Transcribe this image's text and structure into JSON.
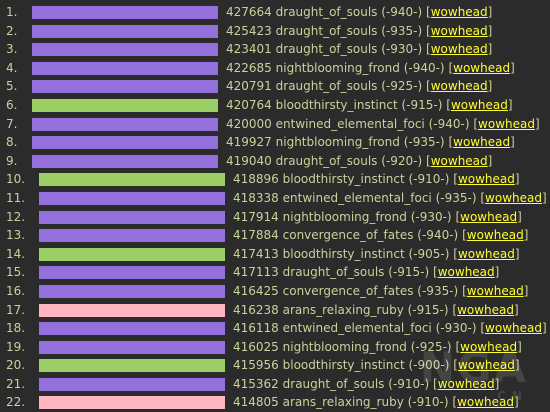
{
  "colors": {
    "purple": "#9370db",
    "green": "#9acd63",
    "pink": "#ffb6c1",
    "link": "#ffff33",
    "text": "#c8d39a",
    "background": "#2b2b2b"
  },
  "rows": [
    {
      "rank": "1.",
      "score": "427664",
      "name": "draught_of_souls",
      "ilvl": "(-940-)",
      "link": "wowhead",
      "color": "purple"
    },
    {
      "rank": "2.",
      "score": "425423",
      "name": "draught_of_souls",
      "ilvl": "(-935-)",
      "link": "wowhead",
      "color": "purple"
    },
    {
      "rank": "3.",
      "score": "423401",
      "name": "draught_of_souls",
      "ilvl": "(-930-)",
      "link": "wowhead",
      "color": "purple"
    },
    {
      "rank": "4.",
      "score": "422685",
      "name": "nightblooming_frond",
      "ilvl": "(-940-)",
      "link": "wowhead",
      "color": "purple"
    },
    {
      "rank": "5.",
      "score": "420791",
      "name": "draught_of_souls",
      "ilvl": "(-925-)",
      "link": "wowhead",
      "color": "purple"
    },
    {
      "rank": "6.",
      "score": "420764",
      "name": "bloodthirsty_instinct",
      "ilvl": "(-915-)",
      "link": "wowhead",
      "color": "green"
    },
    {
      "rank": "7.",
      "score": "420000",
      "name": "entwined_elemental_foci",
      "ilvl": "(-940-)",
      "link": "wowhead",
      "color": "purple"
    },
    {
      "rank": "8.",
      "score": "419927",
      "name": "nightblooming_frond",
      "ilvl": "(-935-)",
      "link": "wowhead",
      "color": "purple"
    },
    {
      "rank": "9.",
      "score": "419040",
      "name": "draught_of_souls",
      "ilvl": "(-920-)",
      "link": "wowhead",
      "color": "purple"
    },
    {
      "rank": "10.",
      "score": "418896",
      "name": "bloodthirsty_instinct",
      "ilvl": "(-910-)",
      "link": "wowhead",
      "color": "green"
    },
    {
      "rank": "11.",
      "score": "418338",
      "name": "entwined_elemental_foci",
      "ilvl": "(-935-)",
      "link": "wowhead",
      "color": "purple"
    },
    {
      "rank": "12.",
      "score": "417914",
      "name": "nightblooming_frond",
      "ilvl": "(-930-)",
      "link": "wowhead",
      "color": "purple"
    },
    {
      "rank": "13.",
      "score": "417884",
      "name": "convergence_of_fates",
      "ilvl": "(-940-)",
      "link": "wowhead",
      "color": "purple"
    },
    {
      "rank": "14.",
      "score": "417413",
      "name": "bloodthirsty_instinct",
      "ilvl": "(-905-)",
      "link": "wowhead",
      "color": "green"
    },
    {
      "rank": "15.",
      "score": "417113",
      "name": "draught_of_souls",
      "ilvl": "(-915-)",
      "link": "wowhead",
      "color": "purple"
    },
    {
      "rank": "16.",
      "score": "416425",
      "name": "convergence_of_fates",
      "ilvl": "(-935-)",
      "link": "wowhead",
      "color": "purple"
    },
    {
      "rank": "17.",
      "score": "416238",
      "name": "arans_relaxing_ruby",
      "ilvl": "(-915-)",
      "link": "wowhead",
      "color": "pink"
    },
    {
      "rank": "18.",
      "score": "416118",
      "name": "entwined_elemental_foci",
      "ilvl": "(-930-)",
      "link": "wowhead",
      "color": "purple"
    },
    {
      "rank": "19.",
      "score": "416025",
      "name": "nightblooming_frond",
      "ilvl": "(-925-)",
      "link": "wowhead",
      "color": "purple"
    },
    {
      "rank": "20.",
      "score": "415956",
      "name": "bloodthirsty_instinct",
      "ilvl": "(-900-)",
      "link": "wowhead",
      "color": "green"
    },
    {
      "rank": "21.",
      "score": "415362",
      "name": "draught_of_souls",
      "ilvl": "(-910-)",
      "link": "wowhead",
      "color": "purple"
    },
    {
      "rank": "22.",
      "score": "414805",
      "name": "arans_relaxing_ruby",
      "ilvl": "(-910-)",
      "link": "wowhead",
      "color": "pink"
    }
  ],
  "watermark": {
    "big": "NGA",
    "small": "CN"
  }
}
